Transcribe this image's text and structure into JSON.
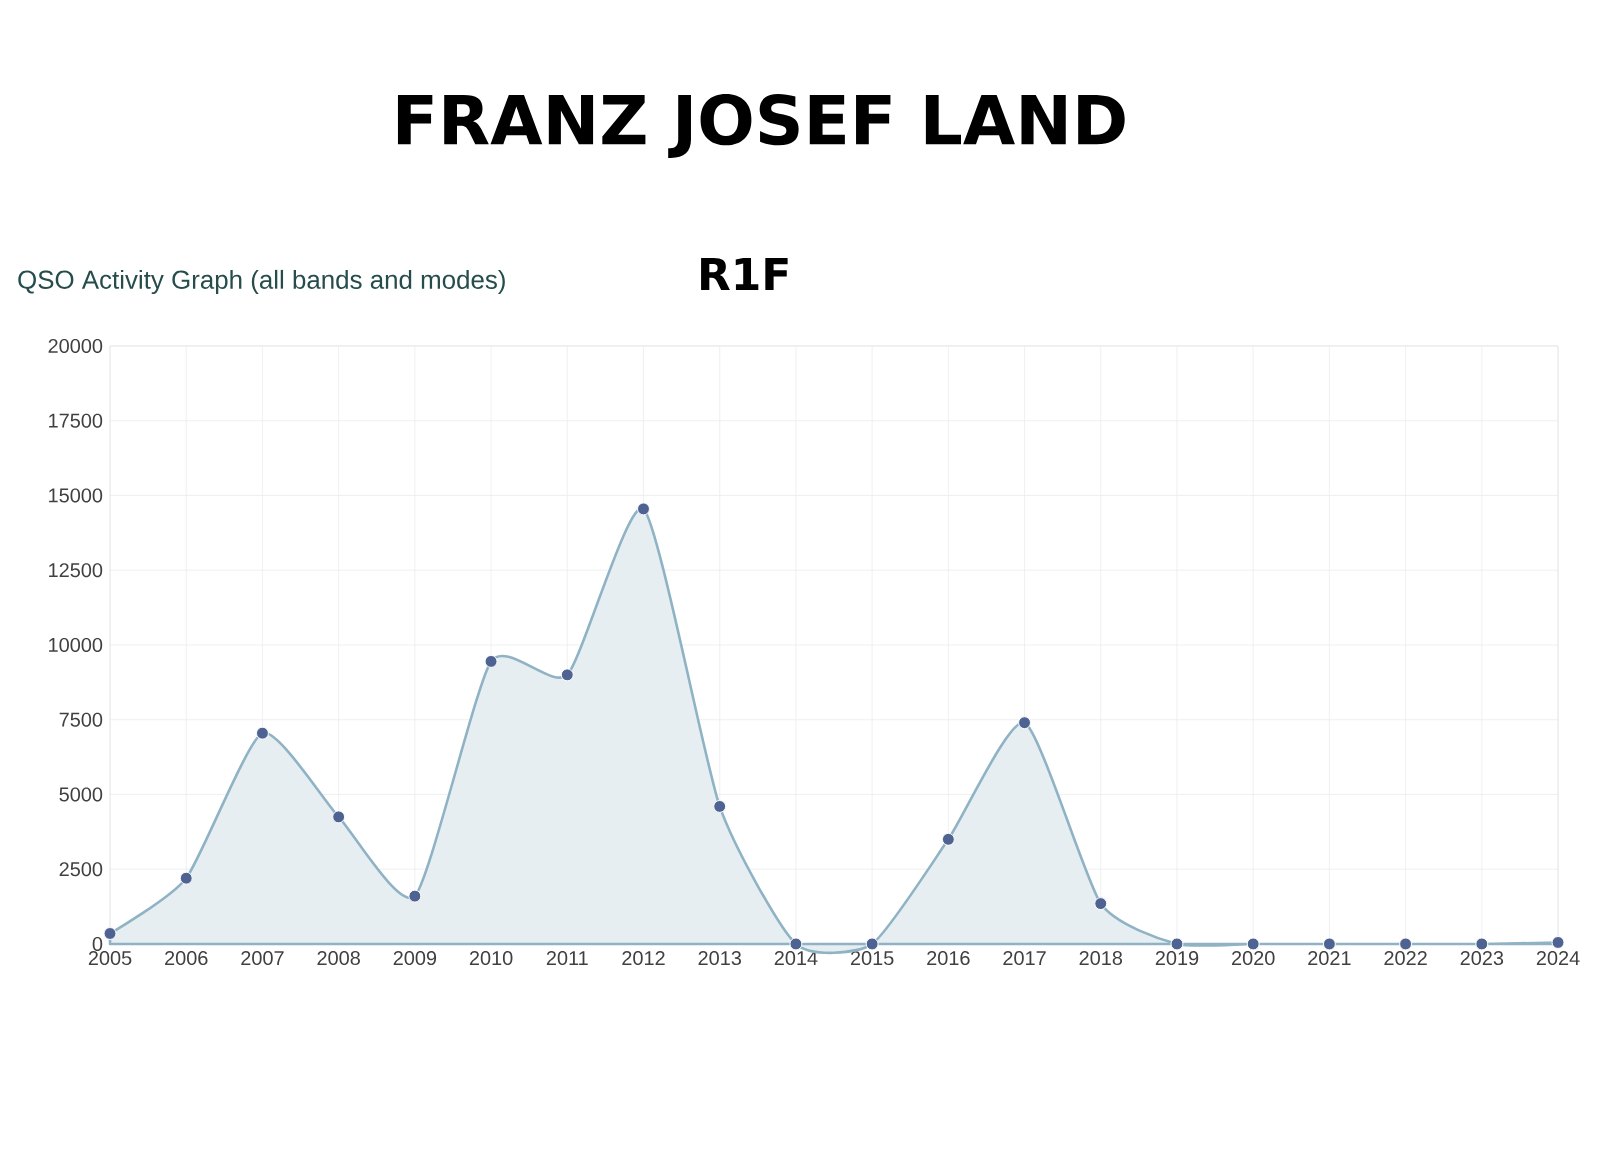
{
  "chart_data": {
    "type": "area",
    "title": "FRANZ JOSEF LAND",
    "subtitle": "QSO Activity Graph (all bands and modes)",
    "annotations": [
      "R1F"
    ],
    "categories": [
      "2005",
      "2006",
      "2007",
      "2008",
      "2009",
      "2010",
      "2011",
      "2012",
      "2013",
      "2014",
      "2015",
      "2016",
      "2017",
      "2018",
      "2019",
      "2020",
      "2021",
      "2022",
      "2023",
      "2024"
    ],
    "values": [
      350,
      2200,
      7050,
      4250,
      1600,
      9450,
      9000,
      14550,
      4600,
      0,
      0,
      3500,
      7400,
      1350,
      0,
      0,
      0,
      0,
      0,
      50
    ],
    "color": "#8fb3c4",
    "ylim": [
      0,
      20000
    ],
    "yticks": [
      0,
      2500,
      5000,
      7500,
      10000,
      12500,
      15000,
      17500,
      20000
    ],
    "grid": true,
    "marker": "circle"
  }
}
